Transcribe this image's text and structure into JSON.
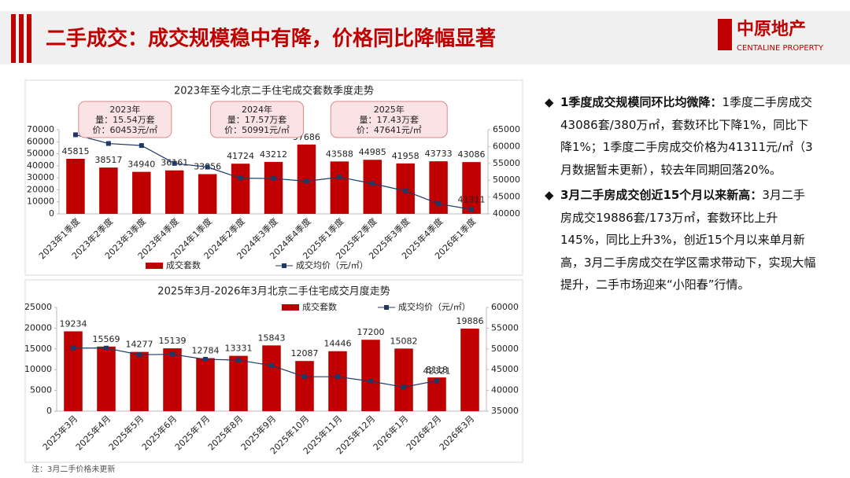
{
  "header": {
    "title": "二手成交：成交规模稳中有降，价格同比降幅显著",
    "logo": "中原地产",
    "logo_en": "CENTALINE PROPERTY"
  },
  "chart_data": [
    {
      "type": "bar-line",
      "title": "2023年至今北京二手住宅成交套数季度走势",
      "categories": [
        "2023年1季度",
        "2023年2季度",
        "2023年3季度",
        "2023年4季度",
        "2024年1季度",
        "2024年2季度",
        "2024年3季度",
        "2024年4季度",
        "2025年1季度",
        "2025年2季度",
        "2025年3季度",
        "2025年4季度",
        "2026年1季度"
      ],
      "series": [
        {
          "name": "成交套数",
          "kind": "bar",
          "color": "#c00000",
          "values": [
            45815,
            38517,
            34940,
            36161,
            33056,
            41724,
            43212,
            57686,
            43588,
            44985,
            41958,
            43733,
            43086
          ]
        },
        {
          "name": "成交均价（元/㎡）",
          "kind": "line",
          "axis": "y2",
          "color": "#1f3864",
          "values": [
            63500,
            60900,
            60300,
            55000,
            53900,
            50600,
            50500,
            49700,
            50900,
            49000,
            46800,
            43000,
            41311
          ],
          "value_labels": [
            null,
            null,
            null,
            null,
            null,
            null,
            null,
            null,
            null,
            null,
            null,
            null,
            "41311"
          ]
        }
      ],
      "ylim": [
        0,
        70000
      ],
      "yticks": [
        0,
        10000,
        20000,
        30000,
        40000,
        50000,
        60000,
        70000
      ],
      "y2lim": [
        40000,
        65000
      ],
      "y2ticks": [
        40000,
        45000,
        50000,
        55000,
        60000,
        65000
      ],
      "grid": false,
      "legend": "bottom",
      "annotations": [
        {
          "lines": [
            "2023年",
            "量：15.54万套",
            "价：60453元/㎡"
          ]
        },
        {
          "lines": [
            "2024年",
            "量：17.57万套",
            "价：50991元/㎡"
          ]
        },
        {
          "lines": [
            "2025年",
            "量：17.43万套",
            "价：47641元/㎡"
          ]
        }
      ]
    },
    {
      "type": "bar-line",
      "title": "2025年3月-2026年3月北京二手住宅成交月度走势",
      "categories": [
        "2025年3月",
        "2025年4月",
        "2025年5月",
        "2025年6月",
        "2025年7月",
        "2025年8月",
        "2025年9月",
        "2025年10月",
        "2025年11月",
        "2025年12月",
        "2026年1月",
        "2026年2月",
        "2026年3月"
      ],
      "series": [
        {
          "name": "成交套数",
          "kind": "bar",
          "color": "#c00000",
          "values": [
            19234,
            15569,
            14277,
            15139,
            12784,
            13331,
            15843,
            12087,
            14446,
            17200,
            15082,
            8118,
            19886
          ]
        },
        {
          "name": "成交均价（元/㎡）",
          "kind": "line",
          "axis": "y2",
          "color": "#1f3864",
          "values": [
            50200,
            50200,
            48600,
            48700,
            47500,
            47300,
            46000,
            43300,
            43300,
            42200,
            40800,
            42321,
            null
          ],
          "value_labels": [
            null,
            null,
            null,
            null,
            null,
            null,
            null,
            null,
            null,
            null,
            null,
            "42321",
            null
          ]
        }
      ],
      "ylim": [
        0,
        25000
      ],
      "yticks": [
        0,
        5000,
        10000,
        15000,
        20000,
        25000
      ],
      "y2lim": [
        35000,
        60000
      ],
      "y2ticks": [
        35000,
        40000,
        45000,
        50000,
        55000,
        60000
      ],
      "grid": false,
      "legend": "top"
    }
  ],
  "bullets": [
    {
      "lead": "1季度成交规模同环比均微降：",
      "text": "1季度二手房成交43086套/380万㎡，套数环比下降1%，同比下降1%；1季度二手房成交价格为41311元/㎡（3月数据暂未更新），较去年同期回落20%。"
    },
    {
      "lead": "3月二手房成交创近15个月以来新高：",
      "text": "3月二手房成交19886套/173万㎡，套数环比上升145%，同比上升3%，创近15个月以来单月新高，3月二手房成交在学区需求带动下，实现大幅提升，二手市场迎来“小阳春”行情。"
    }
  ],
  "note": "注：3月二手价格未更新"
}
